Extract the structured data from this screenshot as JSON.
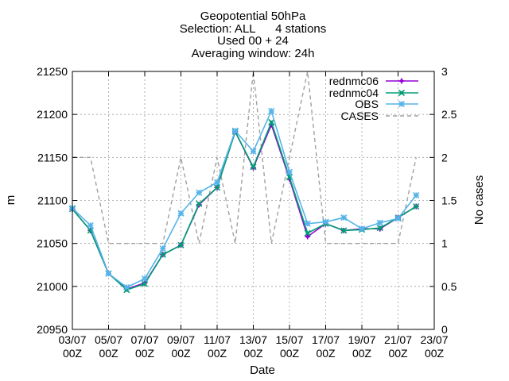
{
  "title_lines": [
    "Geopotential 50hPa",
    "Selection: ALL      4 stations",
    "Used 00 + 24",
    "Averaging window: 24h"
  ],
  "chart_data": {
    "type": "line",
    "xlabel": "Date",
    "ylabel": "m",
    "y2label": "No cases",
    "x_ticks": [
      {
        "date": "03/07",
        "hour": "00Z"
      },
      {
        "date": "05/07",
        "hour": "00Z"
      },
      {
        "date": "07/07",
        "hour": "00Z"
      },
      {
        "date": "09/07",
        "hour": "00Z"
      },
      {
        "date": "11/07",
        "hour": "00Z"
      },
      {
        "date": "13/07",
        "hour": "00Z"
      },
      {
        "date": "15/07",
        "hour": "00Z"
      },
      {
        "date": "17/07",
        "hour": "00Z"
      },
      {
        "date": "19/07",
        "hour": "00Z"
      },
      {
        "date": "21/07",
        "hour": "00Z"
      },
      {
        "date": "23/07",
        "hour": "00Z"
      }
    ],
    "x": [
      "03/07",
      "04/07",
      "05/07",
      "06/07",
      "07/07",
      "08/07",
      "09/07",
      "10/07",
      "11/07",
      "12/07",
      "13/07",
      "14/07",
      "15/07",
      "16/07",
      "17/07",
      "18/07",
      "19/07",
      "20/07",
      "21/07",
      "22/07"
    ],
    "ylim": [
      20950,
      21250
    ],
    "yticks": [
      20950,
      21000,
      21050,
      21100,
      21150,
      21200,
      21250
    ],
    "y2lim": [
      0,
      3
    ],
    "y2ticks": [
      "0",
      "0.5",
      "1",
      "1.5",
      "2",
      "2.5",
      "3"
    ],
    "grid": true,
    "legend_position": "top-right",
    "series": [
      {
        "name": "rednmc06",
        "axis": "y",
        "color": "#9400d3",
        "marker": "plus",
        "values": [
          21090,
          21065,
          21015,
          20997,
          21004,
          21037,
          21048,
          21095,
          21115,
          21180,
          21138,
          21188,
          21125,
          21058,
          21073,
          21065,
          21067,
          21067,
          21080,
          21093
        ]
      },
      {
        "name": "rednmc04",
        "axis": "y",
        "color": "#009e73",
        "marker": "cross",
        "values": [
          21090,
          21065,
          21015,
          20996,
          21003,
          21037,
          21048,
          21096,
          21115,
          21180,
          21139,
          21191,
          21127,
          21062,
          21073,
          21065,
          21066,
          21068,
          21080,
          21093
        ]
      },
      {
        "name": "OBS",
        "axis": "y",
        "color": "#56b4e9",
        "marker": "star",
        "values": [
          21091,
          21071,
          21015,
          20999,
          21009,
          21044,
          21085,
          21109,
          21121,
          21181,
          21157,
          21204,
          21133,
          21073,
          21075,
          21080,
          21067,
          21074,
          21079,
          21106
        ]
      },
      {
        "name": "CASES",
        "axis": "y2",
        "color": "#a0a0a0",
        "dash": true,
        "values": [
          2,
          2,
          1,
          1,
          1,
          1,
          2,
          1,
          2,
          1,
          3,
          1,
          2,
          3,
          1,
          1,
          1,
          1,
          1,
          2
        ]
      }
    ]
  }
}
